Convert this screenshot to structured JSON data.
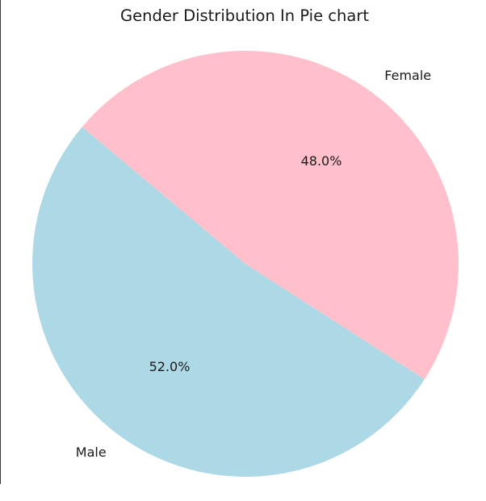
{
  "chart_data": {
    "type": "pie",
    "title": "Gender Distribution In Pie chart",
    "labels": [
      "Male",
      "Female"
    ],
    "values": [
      52.0,
      48.0
    ],
    "autopct": [
      "52.0%",
      "48.0%"
    ],
    "colors": [
      "#add8e6",
      "#ffc0cb"
    ],
    "start_angle_degrees": 140
  }
}
